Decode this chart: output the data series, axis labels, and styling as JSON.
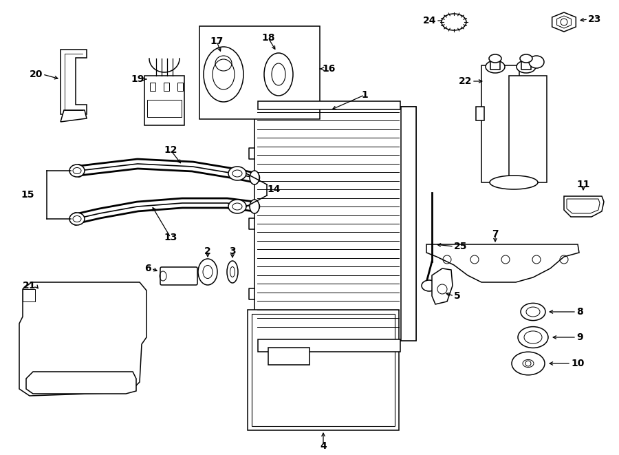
{
  "bg_color": "#ffffff",
  "line_color": "#000000",
  "fig_width": 9.0,
  "fig_height": 6.61,
  "dpi": 100,
  "lw": 1.1,
  "fontsize": 10,
  "arrow_ms": 7
}
